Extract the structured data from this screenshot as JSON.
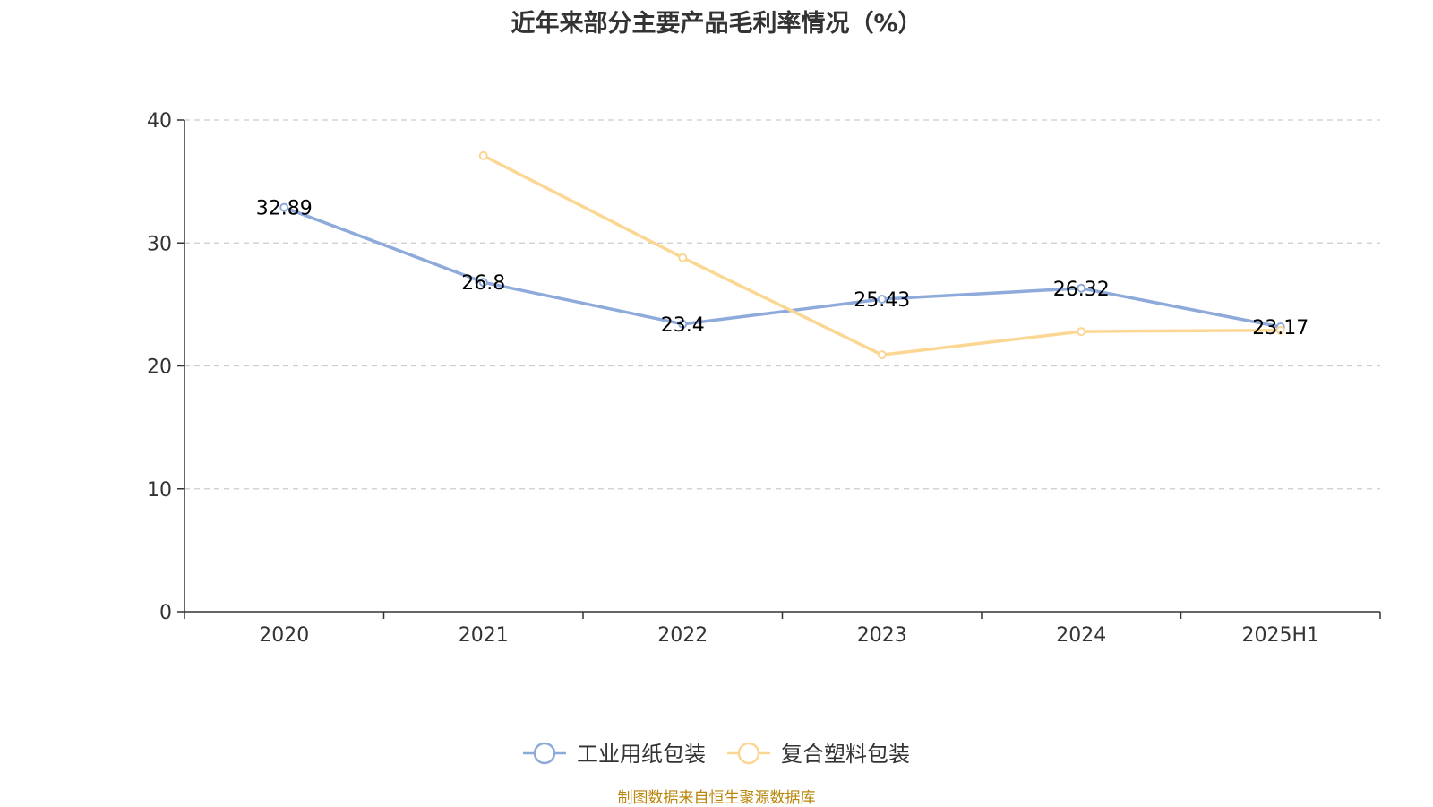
{
  "chart_data": {
    "type": "line",
    "title": "近年来部分主要产品毛利率情况（%）",
    "categories": [
      "2020",
      "2021",
      "2022",
      "2023",
      "2024",
      "2025H1"
    ],
    "series": [
      {
        "name": "工业用纸包装",
        "color": "#8eaadb",
        "values": [
          32.89,
          26.8,
          23.4,
          25.43,
          26.32,
          23.17
        ],
        "labels": [
          "32.89",
          "26.8",
          "23.4",
          "25.43",
          "26.32",
          "23.17"
        ]
      },
      {
        "name": "复合塑料包装",
        "color": "#fcd794",
        "values": [
          null,
          37.1,
          28.8,
          20.9,
          22.8,
          22.9
        ]
      }
    ],
    "y_ticks": [
      "0",
      "10",
      "20",
      "30",
      "40"
    ],
    "ylim": [
      0,
      40
    ],
    "grid": true,
    "legend": "bottom-center"
  },
  "source": "制图数据来自恒生聚源数据库"
}
